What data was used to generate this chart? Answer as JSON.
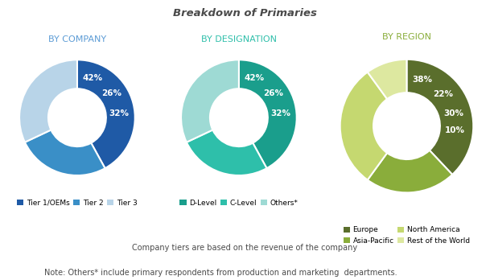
{
  "title": "Breakdown of Primaries",
  "title_color": "#4a4a4a",
  "bg_color": "#ffffff",
  "chart1_label": "BY COMPANY",
  "chart1_values": [
    42,
    26,
    32
  ],
  "chart1_pct": [
    "42%",
    "26%",
    "32%"
  ],
  "chart1_colors": [
    "#1f5aa6",
    "#3a8fc7",
    "#b8d4e8"
  ],
  "chart1_legend": [
    "Tier 1/OEMs",
    "Tier 2",
    "Tier 3"
  ],
  "chart2_label": "BY DESIGNATION",
  "chart2_values": [
    42,
    26,
    32
  ],
  "chart2_pct": [
    "42%",
    "26%",
    "32%"
  ],
  "chart2_colors": [
    "#1a9e8c",
    "#2ebfaa",
    "#9edad4"
  ],
  "chart2_legend": [
    "D-Level",
    "C-Level",
    "Others*"
  ],
  "chart3_label": "BY REGION",
  "chart3_values": [
    38,
    22,
    30,
    10
  ],
  "chart3_pct": [
    "38%",
    "22%",
    "30%",
    "10%"
  ],
  "chart3_colors": [
    "#5a6e2c",
    "#8aad3b",
    "#c5d870",
    "#dde8a0"
  ],
  "chart3_legend": [
    "Europe",
    "Asia-Pacific",
    "North America",
    "Rest of the World"
  ],
  "note1": "Company tiers are based on the revenue of the company",
  "note2": "Note: Others* include primary respondents from production and marketing  departments.",
  "label_color": "#4a4a4a",
  "subtitle_color_1": "#5b9bd5",
  "subtitle_color_2": "#2ebfaa",
  "subtitle_color_3": "#8aad3b",
  "wedge_label_fontsize": 7.5,
  "wedge_label_color": "#ffffff",
  "legend_fontsize": 6.5,
  "note_fontsize": 7,
  "title_fontsize": 9.5,
  "subtitle_fontsize": 8
}
